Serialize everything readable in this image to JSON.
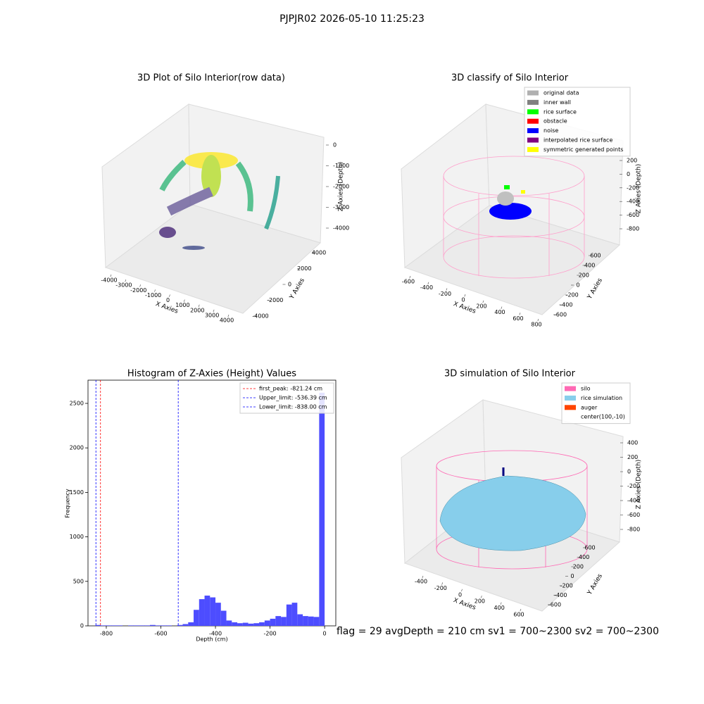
{
  "suptitle": "PJPJR02 2026-05-10 11:25:23",
  "footer": "flag = 29  avgDepth = 210 cm  sv1 = 700~2300  sv2 = 700~2300",
  "chart_data": [
    {
      "type": "scatter3d",
      "title": "3D Plot of Silo Interior(row data)",
      "xlabel": "X Axies",
      "ylabel": "Y Axies",
      "zlabel": "Z Axies (Depth)",
      "xlim": [
        -4000,
        4000
      ],
      "ylim": [
        -4000,
        4000
      ],
      "zlim": [
        0,
        -4000
      ],
      "xticks": [
        -4000,
        -3000,
        -2000,
        -1000,
        0,
        1000,
        2000,
        3000,
        4000
      ],
      "yticks": [
        -4000,
        -2000,
        0,
        2000,
        4000
      ],
      "zticks": [
        0,
        -1000,
        -2000,
        -3000,
        -4000
      ]
    },
    {
      "type": "scatter3d",
      "title": "3D classify of Silo Interior",
      "xlabel": "X Axies",
      "ylabel": "Y Axies",
      "zlabel": "Z Axies (Depth)",
      "xlim": [
        -600,
        800
      ],
      "ylim": [
        -600,
        600
      ],
      "zlim": [
        200,
        -800
      ],
      "xticks": [
        -600,
        -400,
        -200,
        0,
        200,
        400,
        600,
        800
      ],
      "yticks": [
        -600,
        -400,
        -200,
        0,
        200,
        400,
        600
      ],
      "zticks": [
        200,
        0,
        -200,
        -400,
        -600,
        -800
      ],
      "legend": [
        {
          "name": "original data",
          "color": "#b0b0b0"
        },
        {
          "name": "inner wall",
          "color": "#808080"
        },
        {
          "name": "rice surface",
          "color": "#00ff00"
        },
        {
          "name": "obstacle",
          "color": "#ff0000"
        },
        {
          "name": "noise",
          "color": "#0000ff"
        },
        {
          "name": "interpolated rice surface",
          "color": "#800080"
        },
        {
          "name": "symmetric generated points",
          "color": "#ffff00"
        }
      ]
    },
    {
      "type": "histogram",
      "title": "Histogram of Z-Axies (Height) Values",
      "xlabel": "Depth (cm)",
      "ylabel": "Frequency",
      "color": "#4d4dff",
      "bins": [
        -840,
        -820,
        -800,
        -780,
        -760,
        -740,
        -720,
        -700,
        -680,
        -660,
        -640,
        -620,
        -600,
        -580,
        -560,
        -540,
        -520,
        -500,
        -480,
        -460,
        -440,
        -420,
        -400,
        -380,
        -360,
        -340,
        -320,
        -300,
        -280,
        -260,
        -240,
        -220,
        -200,
        -180,
        -160,
        -140,
        -120,
        -100,
        -80,
        -60,
        -40,
        -20,
        0
      ],
      "counts": [
        10,
        5,
        5,
        5,
        5,
        0,
        5,
        5,
        5,
        5,
        10,
        5,
        5,
        5,
        0,
        10,
        20,
        40,
        180,
        300,
        340,
        320,
        260,
        170,
        60,
        40,
        30,
        35,
        25,
        30,
        40,
        60,
        80,
        110,
        100,
        240,
        260,
        130,
        110,
        105,
        100,
        2620
      ],
      "xlim": [
        -867,
        41
      ],
      "ylim": [
        0,
        2761
      ],
      "xticks": [
        -800,
        -600,
        -400,
        -200,
        0
      ],
      "yticks": [
        0,
        500,
        1000,
        1500,
        2000,
        2500
      ],
      "lines": [
        {
          "name": "first_peak: -821.24 cm",
          "value": -821.24,
          "color": "#ff0000"
        },
        {
          "name": "Upper_limit: -536.39 cm",
          "value": -536.39,
          "color": "#0000ff"
        },
        {
          "name": "Lower_limit: -838.00 cm",
          "value": -838.0,
          "color": "#0000ff"
        }
      ]
    },
    {
      "type": "surface3d",
      "title": "3D simulation of Silo Interior",
      "xlabel": "X Axies",
      "ylabel": "Y Axies",
      "zlabel": "Z Axies (Depth)",
      "xlim": [
        -400,
        600
      ],
      "ylim": [
        -600,
        600
      ],
      "zlim": [
        400,
        -800
      ],
      "xticks": [
        -400,
        -200,
        0,
        200,
        400,
        600
      ],
      "yticks": [
        -600,
        -400,
        -200,
        0,
        200,
        400,
        600
      ],
      "zticks": [
        400,
        200,
        0,
        -200,
        -400,
        -600,
        -800
      ],
      "legend": [
        {
          "name": "silo",
          "color": "#ff69b4"
        },
        {
          "name": "rice simulation",
          "color": "#87ceeb"
        },
        {
          "name": "auger",
          "color": "#ff4500"
        },
        {
          "name": "center(100,-10)",
          "color": null
        }
      ]
    }
  ]
}
